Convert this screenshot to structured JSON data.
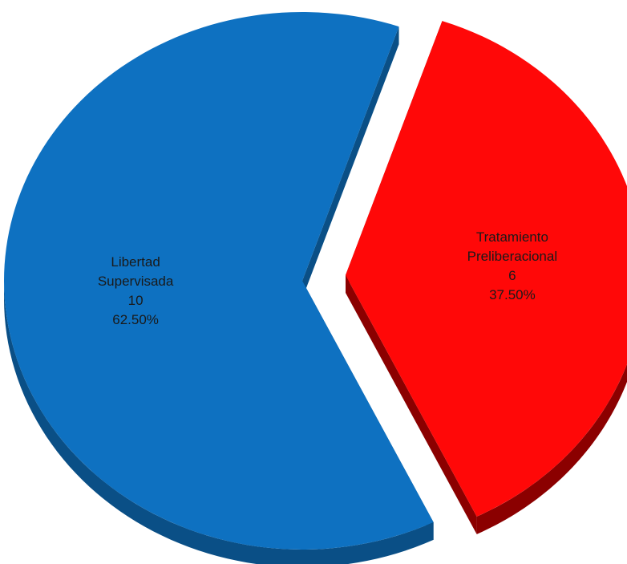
{
  "chart_data": {
    "type": "pie",
    "style": "3d-exploded",
    "slices": [
      {
        "label_lines": [
          "Libertad",
          "Supervisada"
        ],
        "category": "Libertad Supervisada",
        "value": 10,
        "value_label": "10",
        "percent": 62.5,
        "percent_label": "62.50%",
        "color": "#0E71C1",
        "side_color": "#0A4F86",
        "exploded": false
      },
      {
        "label_lines": [
          "Tratamiento",
          "Preliberacional"
        ],
        "category": "Tratamiento Preliberacional",
        "value": 6,
        "value_label": "6",
        "percent": 37.5,
        "percent_label": "37.50%",
        "color": "#FF0808",
        "side_color": "#8B0000",
        "exploded": true
      }
    ]
  }
}
